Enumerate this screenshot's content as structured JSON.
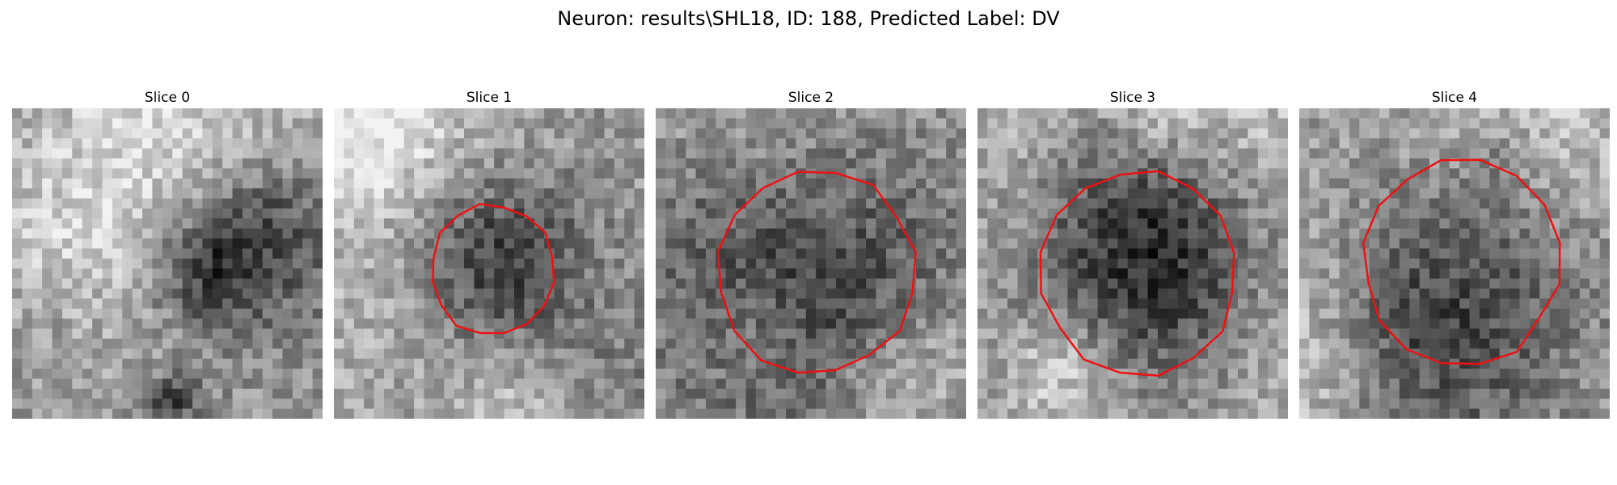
{
  "figure": {
    "title": "Neuron: results\\SHL18, ID: 188, Predicted Label: DV"
  },
  "colors": {
    "contour": "#ee1111",
    "background": "#ffffff"
  },
  "panels": [
    {
      "title": "Slice 0",
      "contour": false,
      "dark_center": [
        0.62,
        0.5
      ],
      "dark_radius": 0.13,
      "second_dark": [
        0.5,
        0.93
      ]
    },
    {
      "title": "Slice 1",
      "contour": true,
      "dark_center": [
        0.51,
        0.52
      ],
      "dark_radius": 0.19
    },
    {
      "title": "Slice 2",
      "contour": true,
      "dark_center": [
        0.52,
        0.53
      ],
      "dark_radius": 0.3
    },
    {
      "title": "Slice 3",
      "contour": true,
      "dark_center": [
        0.52,
        0.53
      ],
      "dark_radius": 0.3
    },
    {
      "title": "Slice 4",
      "contour": true,
      "dark_center": [
        0.52,
        0.5
      ],
      "dark_radius": 0.3
    }
  ]
}
